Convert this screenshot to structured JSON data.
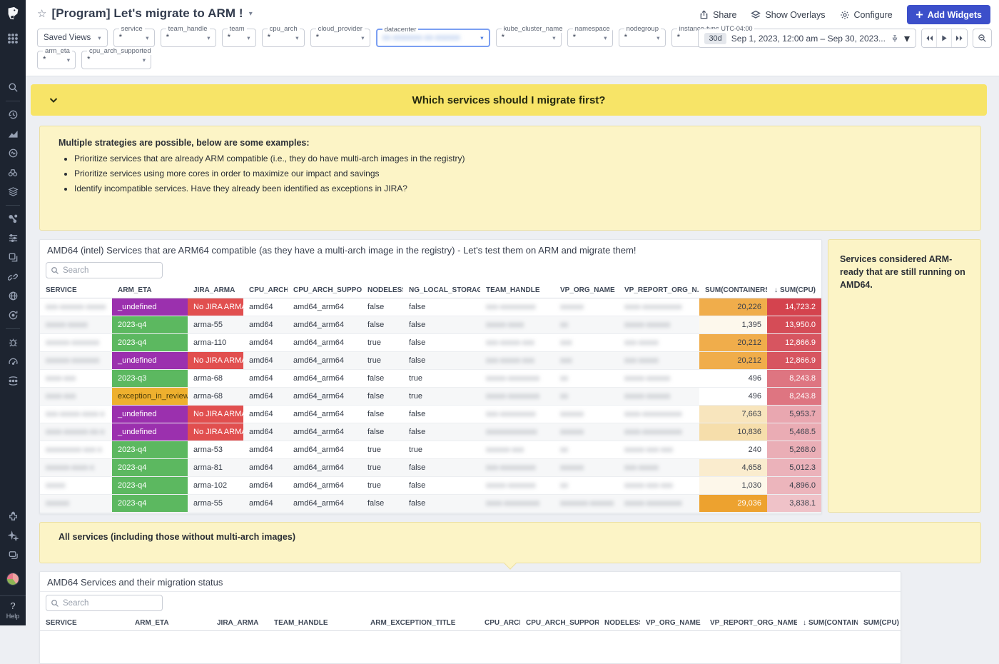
{
  "header": {
    "title": "[Program] Let's migrate to ARM !",
    "toolbar": {
      "share": "Share",
      "overlays": "Show Overlays",
      "configure": "Configure",
      "add_widgets": "Add Widgets"
    }
  },
  "icons": {
    "caret_down": "▾",
    "star": "☆",
    "sort_desc": "↓",
    "help": "?"
  },
  "filters": {
    "saved_views": "Saved Views",
    "row1": [
      {
        "label": "service",
        "value": "*"
      },
      {
        "label": "team_handle",
        "value": "*"
      },
      {
        "label": "team",
        "value": "*"
      },
      {
        "label": "cpu_arch",
        "value": "*"
      },
      {
        "label": "cloud_provider",
        "value": "*"
      },
      {
        "label": "datacenter",
        "value": "xx-xxxxxxx-xx-xxxxxx",
        "highlighted": true,
        "masked": true
      },
      {
        "label": "kube_cluster_name",
        "value": "*"
      },
      {
        "label": "namespace",
        "value": "*"
      },
      {
        "label": "nodegroup",
        "value": "*"
      },
      {
        "label": "instance-type",
        "value": "*"
      }
    ],
    "row2": [
      {
        "label": "arm_eta",
        "value": "*"
      },
      {
        "label": "cpu_arch_supported",
        "value": "*"
      }
    ]
  },
  "timebar": {
    "timezone": "UTC-04:00",
    "range_chip": "30d",
    "range_text": "Sep 1, 2023, 12:00 am – Sep 30, 2023..."
  },
  "group_header": {
    "title": "Which services should I migrate first?"
  },
  "strategy_note": {
    "intro": "Multiple strategies are possible, below are some examples:",
    "bullets": [
      "Prioritize services that are already ARM compatible (i.e., they do have multi-arch images in the registry)",
      "Prioritize services using more cores in order to maximize our impact and savings",
      "Identify incompatible services. Have they already been identified as exceptions in JIRA?"
    ]
  },
  "side_note": {
    "text": "Services considered ARM-ready that are still running on AMD64."
  },
  "all_services_note": {
    "text": "All services (including those without multi-arch images)"
  },
  "compat_table": {
    "title": "AMD64 (intel) Services that are ARM64 compatible (as they have a multi-arch image in the registry) - Let's test them on ARM and migrate them!",
    "search_placeholder": "Search",
    "columns": [
      {
        "label": "SERVICE"
      },
      {
        "label": "ARM_ETA"
      },
      {
        "label": "JIRA_ARMA"
      },
      {
        "label": "CPU_ARCH"
      },
      {
        "label": "CPU_ARCH_SUPPO..."
      },
      {
        "label": "NODELESS"
      },
      {
        "label": "NG_LOCAL_STORAGE"
      },
      {
        "label": "TEAM_HANDLE"
      },
      {
        "label": "VP_ORG_NAME"
      },
      {
        "label": "VP_REPORT_ORG_N..."
      },
      {
        "label": "SUM(CONTAINERS)",
        "align": "right"
      },
      {
        "label": "SUM(CPU)",
        "align": "right",
        "sorted": true
      }
    ],
    "eta_colors": {
      "_undefined": [
        "#9b30ae",
        "#ffffff"
      ],
      "2023-q4": [
        "#5cb860",
        "#ffffff"
      ],
      "2023-q3": [
        "#5cb860",
        "#ffffff"
      ],
      "exception_in_review": [
        "#eeb02e",
        "#4a3d0a"
      ]
    },
    "jira_alert_colors": [
      "#e14f4f",
      "#ffffff"
    ],
    "rows": [
      {
        "service": "xxx-xxxxxx-xxxxx",
        "arm_eta": "_undefined",
        "jira": "No JIRA ARMA",
        "jira_alert": true,
        "cpu_arch": "amd64",
        "cpu_arch_supported": "amd64_arm64",
        "nodeless": "false",
        "ng_local_storage": "false",
        "team": "xxx-xxxxxxxxx",
        "vp_org": "xxxxxx",
        "vp_report": "xxxx-xxxxxxxxxx",
        "containers": {
          "v": "20,226",
          "bg": "#f0ad4b",
          "fg": "#3a3f4a"
        },
        "cpu": {
          "v": "14,723.2",
          "bg": "#d4434e",
          "fg": "#ffffff"
        }
      },
      {
        "service": "xxxxx-xxxxx",
        "arm_eta": "2023-q4",
        "jira": "arma-55",
        "jira_alert": false,
        "cpu_arch": "amd64",
        "cpu_arch_supported": "amd64_arm64",
        "nodeless": "false",
        "ng_local_storage": "false",
        "team": "xxxxx-xxxx",
        "vp_org": "xx",
        "vp_report": "xxxxx-xxxxxx",
        "containers": {
          "v": "1,395",
          "bg": "#fdf8ec",
          "fg": "#3a3f4a"
        },
        "cpu": {
          "v": "13,950.0",
          "bg": "#d54c57",
          "fg": "#ffffff"
        }
      },
      {
        "service": "xxxxxx-xxxxxxx",
        "arm_eta": "2023-q4",
        "jira": "arma-110",
        "jira_alert": false,
        "cpu_arch": "amd64",
        "cpu_arch_supported": "amd64_arm64",
        "nodeless": "true",
        "ng_local_storage": "false",
        "team": "xxx-xxxxx-xxx",
        "vp_org": "xxx",
        "vp_report": "xxx-xxxxx",
        "containers": {
          "v": "20,212",
          "bg": "#f0ad4b",
          "fg": "#3a3f4a"
        },
        "cpu": {
          "v": "12,866.9",
          "bg": "#d75560",
          "fg": "#ffffff"
        }
      },
      {
        "service": "xxxxxx-xxxxxxx",
        "arm_eta": "_undefined",
        "jira": "No JIRA ARMA",
        "jira_alert": true,
        "cpu_arch": "amd64",
        "cpu_arch_supported": "amd64_arm64",
        "nodeless": "true",
        "ng_local_storage": "false",
        "team": "xxx-xxxxx-xxx",
        "vp_org": "xxx",
        "vp_report": "xxx-xxxxx",
        "containers": {
          "v": "20,212",
          "bg": "#f0ad4b",
          "fg": "#3a3f4a"
        },
        "cpu": {
          "v": "12,866.9",
          "bg": "#d75560",
          "fg": "#ffffff"
        }
      },
      {
        "service": "xxxx-xxx",
        "arm_eta": "2023-q3",
        "jira": "arma-68",
        "jira_alert": false,
        "cpu_arch": "amd64",
        "cpu_arch_supported": "amd64_arm64",
        "nodeless": "false",
        "ng_local_storage": "true",
        "team": "xxxxx-xxxxxxxx",
        "vp_org": "xx",
        "vp_report": "xxxxx-xxxxxx",
        "containers": {
          "v": "496",
          "bg": "#ffffff",
          "fg": "#3a3f4a"
        },
        "cpu": {
          "v": "8,243.8",
          "bg": "#de7581",
          "fg": "#ffffff"
        }
      },
      {
        "service": "xxxx-xxx",
        "arm_eta": "exception_in_review",
        "jira": "arma-68",
        "jira_alert": false,
        "cpu_arch": "amd64",
        "cpu_arch_supported": "amd64_arm64",
        "nodeless": "false",
        "ng_local_storage": "true",
        "team": "xxxxx-xxxxxxxx",
        "vp_org": "xx",
        "vp_report": "xxxxx-xxxxxx",
        "containers": {
          "v": "496",
          "bg": "#ffffff",
          "fg": "#3a3f4a"
        },
        "cpu": {
          "v": "8,243.8",
          "bg": "#de7581",
          "fg": "#ffffff"
        }
      },
      {
        "service": "xxx-xxxxx-xxxx-x",
        "arm_eta": "_undefined",
        "jira": "No JIRA ARMA",
        "jira_alert": true,
        "cpu_arch": "amd64",
        "cpu_arch_supported": "amd64_arm64",
        "nodeless": "false",
        "ng_local_storage": "false",
        "team": "xxx-xxxxxxxxx",
        "vp_org": "xxxxxx",
        "vp_report": "xxxx-xxxxxxxxxx",
        "containers": {
          "v": "7,663",
          "bg": "#f8e5bd",
          "fg": "#3a3f4a"
        },
        "cpu": {
          "v": "5,953.7",
          "bg": "#e9a7b0",
          "fg": "#3a3f4a"
        }
      },
      {
        "service": "xxxx-xxxxxx-xx-x",
        "arm_eta": "_undefined",
        "jira": "No JIRA ARMA",
        "jira_alert": true,
        "cpu_arch": "amd64",
        "cpu_arch_supported": "amd64_arm64",
        "nodeless": "false",
        "ng_local_storage": "false",
        "team": "xxxxxxxxxxxxx",
        "vp_org": "xxxxxx",
        "vp_report": "xxxx-xxxxxxxxxx",
        "containers": {
          "v": "10,836",
          "bg": "#f6deab",
          "fg": "#3a3f4a"
        },
        "cpu": {
          "v": "5,468.5",
          "bg": "#eaacb4",
          "fg": "#3a3f4a"
        }
      },
      {
        "service": "xxxxxxxxx-xxx-x",
        "arm_eta": "2023-q4",
        "jira": "arma-53",
        "jira_alert": false,
        "cpu_arch": "amd64",
        "cpu_arch_supported": "amd64_arm64",
        "nodeless": "true",
        "ng_local_storage": "true",
        "team": "xxxxxx-xxx",
        "vp_org": "xx",
        "vp_report": "xxxxx-xxx-xxx",
        "containers": {
          "v": "240",
          "bg": "#ffffff",
          "fg": "#3a3f4a"
        },
        "cpu": {
          "v": "5,268.0",
          "bg": "#eaaeb6",
          "fg": "#3a3f4a"
        }
      },
      {
        "service": "xxxxxx-xxxx-x",
        "arm_eta": "2023-q4",
        "jira": "arma-81",
        "jira_alert": false,
        "cpu_arch": "amd64",
        "cpu_arch_supported": "amd64_arm64",
        "nodeless": "true",
        "ng_local_storage": "false",
        "team": "xxx-xxxxxxxxx",
        "vp_org": "xxxxxx",
        "vp_report": "xxx-xxxxx",
        "containers": {
          "v": "4,658",
          "bg": "#faecce",
          "fg": "#3a3f4a"
        },
        "cpu": {
          "v": "5,012.3",
          "bg": "#ebb2ba",
          "fg": "#3a3f4a"
        }
      },
      {
        "service": "xxxxx",
        "arm_eta": "2023-q4",
        "jira": "arma-102",
        "jira_alert": false,
        "cpu_arch": "amd64",
        "cpu_arch_supported": "amd64_arm64",
        "nodeless": "true",
        "ng_local_storage": "false",
        "team": "xxxxx-xxxxxxx",
        "vp_org": "xx",
        "vp_report": "xxxxx-xxx-xxx",
        "containers": {
          "v": "1,030",
          "bg": "#fdf7ea",
          "fg": "#3a3f4a"
        },
        "cpu": {
          "v": "4,896.0",
          "bg": "#ecb5bc",
          "fg": "#3a3f4a"
        }
      },
      {
        "service": "xxxxxx",
        "arm_eta": "2023-q4",
        "jira": "arma-55",
        "jira_alert": false,
        "cpu_arch": "amd64",
        "cpu_arch_supported": "amd64_arm64",
        "nodeless": "false",
        "ng_local_storage": "false",
        "team": "xxxx-xxxxxxxxx",
        "vp_org": "xxxxxxx-xxxxxx",
        "vp_report": "xxxxx-xxxxxxxxx",
        "containers": {
          "v": "29,036",
          "bg": "#eda22f",
          "fg": "#ffffff"
        },
        "cpu": {
          "v": "3,838.1",
          "bg": "#efc2c8",
          "fg": "#3a3f4a"
        }
      }
    ]
  },
  "status_table": {
    "title": "AMD64 Services and their migration status",
    "search_placeholder": "Search",
    "columns": [
      {
        "label": "SERVICE"
      },
      {
        "label": "ARM_ETA"
      },
      {
        "label": "JIRA_ARMA"
      },
      {
        "label": "TEAM_HANDLE"
      },
      {
        "label": "ARM_EXCEPTION_TITLE"
      },
      {
        "label": "CPU_ARCH"
      },
      {
        "label": "CPU_ARCH_SUPPORTED"
      },
      {
        "label": "NODELESS"
      },
      {
        "label": "VP_ORG_NAME"
      },
      {
        "label": "VP_REPORT_ORG_NAME"
      },
      {
        "label": "SUM(CONTAINERS)",
        "align": "right",
        "sorted": true
      },
      {
        "label": "SUM(CPU)",
        "align": "right"
      }
    ]
  },
  "sidebar_help_label": "Help",
  "palette": {
    "accent_blue": "#3c4fca",
    "banner_yellow": "#f7e467",
    "note_yellow": "#fcf4c6",
    "sidebar_dark": "#1d2430",
    "highlight_border": "#7b9ff2"
  }
}
